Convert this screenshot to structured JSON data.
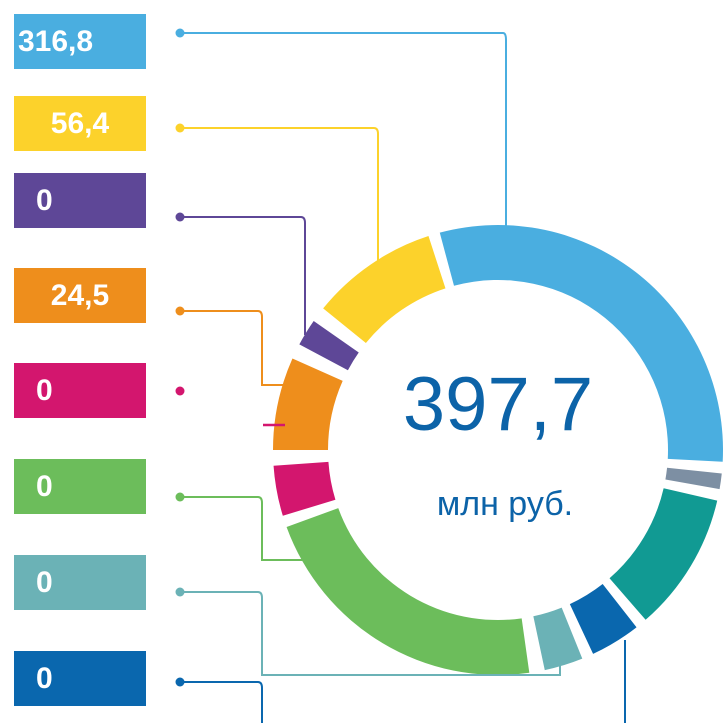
{
  "items": [
    {
      "label": "316,8",
      "color": "#4aaee0"
    },
    {
      "label": "56,4",
      "color": "#fcd22b"
    },
    {
      "label": "0",
      "color": "#5e4797"
    },
    {
      "label": "24,5",
      "color": "#ee8e1c"
    },
    {
      "label": "0",
      "color": "#d3166e"
    },
    {
      "label": "0",
      "color": "#6cbd5b"
    },
    {
      "label": "0",
      "color": "#6bb2b6"
    },
    {
      "label": "0",
      "color": "#0a67ae"
    }
  ],
  "total": "397,7",
  "unit": "млн руб."
}
